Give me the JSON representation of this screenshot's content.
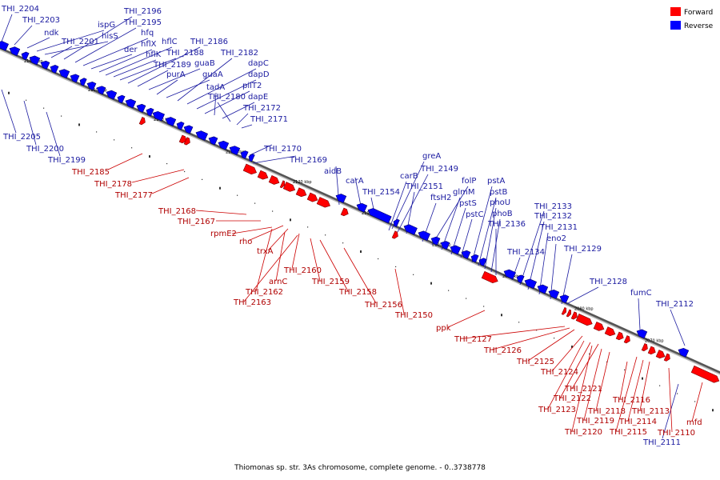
{
  "legend": {
    "forward_label": "Forward",
    "reverse_label": "Reverse",
    "forward_color": "#ff0000",
    "reverse_color": "#0000ff"
  },
  "caption": "Thiomonas sp. str. 3As chromosome, complete genome. - 0..3738778",
  "tick_labels": [
    "2160 kbp",
    "2150 kbp",
    "2140 kbp",
    "2130 kbp",
    "2120 kbp",
    "2110 kbp",
    "2100 kbp",
    "2090 kbp",
    "2080 kbp",
    "2070 kbp"
  ],
  "reverse_genes": [
    "THI_2204",
    "THI_2203",
    "ndk",
    "ispG",
    "hisS",
    "THI_2201",
    "THI_2196",
    "THI_2195",
    "hfq",
    "der",
    "hflX",
    "hflC",
    "hflK",
    "THI_2188",
    "THI_2186",
    "THI_2189",
    "guaB",
    "purA",
    "guaA",
    "THI_2182",
    "dapC",
    "dapD",
    "pilT2",
    "tadA",
    "dapE",
    "THI_2180",
    "THI_2172",
    "THI_2171",
    "THI_2205",
    "THI_2200",
    "THI_2199",
    "THI_2170",
    "THI_2169",
    "aidB",
    "carA",
    "greA",
    "THI_2149",
    "carB",
    "THI_2154",
    "THI_2151",
    "ftsH2",
    "folP",
    "glmM",
    "pstS",
    "pstC",
    "pstA",
    "pstB",
    "phoU",
    "phoB",
    "THI_2136",
    "THI_2134",
    "THI_2133",
    "THI_2132",
    "THI_2131",
    "eno2",
    "THI_2129",
    "THI_2128",
    "fumC",
    "THI_2112",
    "THI_2111"
  ],
  "forward_genes": [
    "THI_2185",
    "THI_2178",
    "THI_2177",
    "THI_2168",
    "THI_2167",
    "rpmE2",
    "rho",
    "trxA",
    "THI_2160",
    "arnC",
    "THI_2162",
    "THI_2163",
    "THI_2159",
    "THI_2158",
    "THI_2156",
    "THI_2150",
    "ppk",
    "THI_2127",
    "THI_2126",
    "THI_2125",
    "THI_2124",
    "THI_2121",
    "THI_2122",
    "THI_2123",
    "THI_2118",
    "THI_2119",
    "THI_2120",
    "THI_2116",
    "THI_2113",
    "THI_2114",
    "THI_2115",
    "THI_2110",
    "mfd"
  ]
}
